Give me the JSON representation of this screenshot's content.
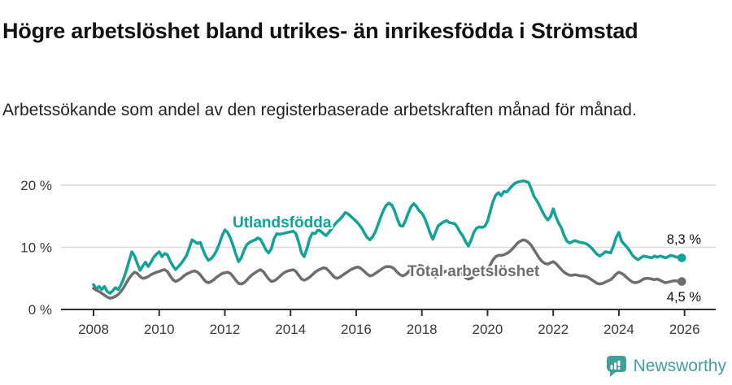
{
  "header": {
    "title": "Högre arbetslöshet bland utrikes- än inrikesfödda i Strömstad",
    "subtitle": "Arbetssökande som andel av den registerbaserade arbetskraften månad för månad."
  },
  "chart_data": {
    "type": "line",
    "unit": "percent",
    "frequency": "monthly",
    "x_start": "2008-01",
    "x_end": "2025-12",
    "grid": "horizontal",
    "legend_position": "inline-labels",
    "y_axis": {
      "range": [
        0,
        22
      ],
      "ticks": [
        {
          "value": 0,
          "label": "0 %"
        },
        {
          "value": 10,
          "label": "10 %"
        },
        {
          "value": 20,
          "label": "20 %"
        }
      ]
    },
    "x_axis": {
      "ticks": [
        {
          "year": 2008,
          "label": "2008"
        },
        {
          "year": 2010,
          "label": "2010"
        },
        {
          "year": 2012,
          "label": "2012"
        },
        {
          "year": 2014,
          "label": "2014"
        },
        {
          "year": 2016,
          "label": "2016"
        },
        {
          "year": 2018,
          "label": "2018"
        },
        {
          "year": 2020,
          "label": "2020"
        },
        {
          "year": 2022,
          "label": "2022"
        },
        {
          "year": 2024,
          "label": "2024"
        },
        {
          "year": 2026,
          "label": "2026"
        }
      ]
    },
    "series": [
      {
        "name": "Utlandsfödda",
        "color": "#12a296",
        "end_label": "8,3 %",
        "end_value": 8.3,
        "values": [
          4.0,
          3.3,
          3.7,
          3.2,
          3.7,
          2.9,
          2.6,
          3.0,
          3.5,
          3.2,
          3.9,
          5.0,
          6.3,
          7.8,
          9.3,
          8.6,
          7.4,
          6.3,
          7.0,
          7.6,
          6.9,
          7.6,
          8.4,
          8.9,
          9.3,
          8.5,
          9.0,
          8.8,
          7.8,
          7.0,
          6.4,
          6.9,
          7.4,
          8.0,
          8.7,
          9.9,
          11.2,
          10.9,
          10.6,
          10.8,
          9.6,
          8.6,
          7.9,
          8.2,
          8.7,
          9.5,
          10.6,
          11.9,
          12.8,
          12.4,
          11.5,
          10.3,
          8.9,
          7.7,
          8.3,
          9.5,
          10.4,
          10.8,
          11.0,
          11.2,
          11.5,
          11.3,
          10.5,
          9.6,
          9.1,
          9.8,
          11.4,
          12.2,
          12.1,
          12.2,
          12.3,
          12.4,
          12.5,
          12.6,
          12.2,
          10.8,
          9.1,
          8.5,
          9.8,
          11.4,
          12.3,
          12.2,
          12.8,
          12.6,
          12.2,
          11.9,
          12.4,
          13.0,
          13.6,
          14.1,
          14.5,
          15.0,
          15.6,
          15.4,
          15.0,
          14.6,
          14.2,
          13.7,
          13.1,
          12.3,
          11.6,
          11.2,
          11.7,
          12.5,
          13.7,
          14.9,
          16.0,
          16.8,
          17.1,
          16.8,
          15.9,
          14.6,
          13.5,
          13.4,
          14.3,
          15.5,
          16.5,
          17.0,
          16.6,
          15.9,
          15.5,
          14.7,
          13.6,
          12.3,
          11.3,
          12.4,
          13.5,
          13.8,
          14.1,
          14.3,
          14.0,
          13.9,
          13.8,
          13.2,
          12.4,
          11.8,
          10.9,
          10.2,
          11.2,
          12.4,
          13.1,
          13.3,
          13.2,
          13.4,
          14.2,
          15.8,
          17.4,
          18.4,
          18.8,
          18.3,
          19.0,
          18.9,
          19.4,
          19.9,
          20.3,
          20.5,
          20.6,
          20.7,
          20.6,
          20.4,
          19.4,
          18.2,
          17.5,
          16.7,
          15.8,
          15.0,
          14.4,
          14.9,
          16.2,
          14.9,
          13.9,
          13.1,
          11.9,
          11.0,
          10.7,
          10.9,
          11.1,
          10.9,
          10.8,
          10.7,
          10.6,
          10.3,
          9.9,
          9.4,
          8.9,
          8.6,
          8.9,
          9.3,
          9.2,
          9.1,
          10.2,
          11.6,
          12.4,
          11.0,
          10.5,
          10.0,
          9.4,
          8.7,
          8.3,
          8.0,
          8.3,
          8.6,
          8.5,
          8.4,
          8.3,
          8.6,
          8.4,
          8.6,
          8.5,
          8.3,
          8.5,
          8.7,
          8.6,
          8.4,
          8.5,
          8.3
        ]
      },
      {
        "name": "Total arbetslöshet",
        "color": "#6e6e6e",
        "end_label": "4,5 %",
        "end_value": 4.5,
        "values": [
          3.4,
          3.1,
          2.9,
          2.6,
          2.3,
          2.0,
          1.8,
          1.9,
          2.1,
          2.4,
          2.9,
          3.5,
          4.3,
          5.0,
          5.6,
          6.0,
          5.8,
          5.3,
          5.0,
          5.1,
          5.3,
          5.6,
          5.8,
          6.0,
          6.1,
          6.3,
          6.4,
          6.1,
          5.4,
          4.8,
          4.5,
          4.7,
          5.0,
          5.4,
          5.7,
          5.9,
          6.1,
          6.2,
          6.0,
          5.6,
          5.0,
          4.5,
          4.3,
          4.5,
          4.8,
          5.2,
          5.5,
          5.8,
          5.9,
          6.0,
          5.8,
          5.3,
          4.7,
          4.2,
          4.1,
          4.3,
          4.7,
          5.2,
          5.6,
          5.9,
          6.2,
          6.4,
          6.1,
          5.5,
          4.9,
          4.5,
          4.6,
          4.9,
          5.3,
          5.7,
          6.0,
          6.2,
          6.3,
          6.4,
          6.1,
          5.5,
          4.9,
          4.7,
          4.9,
          5.2,
          5.6,
          6.0,
          6.3,
          6.5,
          6.7,
          6.6,
          6.2,
          5.7,
          5.2,
          5.0,
          5.2,
          5.5,
          5.8,
          6.1,
          6.4,
          6.6,
          6.8,
          6.8,
          6.5,
          6.1,
          5.7,
          5.4,
          5.5,
          5.8,
          6.1,
          6.4,
          6.7,
          6.9,
          6.9,
          6.8,
          6.5,
          6.0,
          5.6,
          5.4,
          5.6,
          6.0,
          6.5,
          6.9,
          7.1,
          7.1,
          7.0,
          6.7,
          6.2,
          5.7,
          5.4,
          5.2,
          5.4,
          5.7,
          6.0,
          6.2,
          6.3,
          6.4,
          6.4,
          6.2,
          5.9,
          5.5,
          5.1,
          4.9,
          5.0,
          5.3,
          5.5,
          5.7,
          5.9,
          6.1,
          6.5,
          7.2,
          8.0,
          8.5,
          8.7,
          8.7,
          8.8,
          9.0,
          9.3,
          9.7,
          10.2,
          10.7,
          11.0,
          11.2,
          11.1,
          10.8,
          10.3,
          9.6,
          8.9,
          8.2,
          7.7,
          7.4,
          7.3,
          7.5,
          7.7,
          7.4,
          6.9,
          6.4,
          6.0,
          5.7,
          5.5,
          5.5,
          5.6,
          5.5,
          5.4,
          5.4,
          5.3,
          5.1,
          4.8,
          4.5,
          4.2,
          4.1,
          4.2,
          4.4,
          4.6,
          4.8,
          5.2,
          5.7,
          6.0,
          5.8,
          5.5,
          5.1,
          4.7,
          4.4,
          4.3,
          4.4,
          4.6,
          4.9,
          5.0,
          5.0,
          4.9,
          4.8,
          4.9,
          4.7,
          4.5,
          4.3,
          4.4,
          4.5,
          4.6,
          4.6,
          4.5,
          4.5
        ]
      }
    ]
  },
  "footer": {
    "brand": "Newsworthy"
  },
  "colors": {
    "accent": "#12a296",
    "gray_line": "#6e6e6e",
    "grid": "#dcdcdc",
    "axis": "#2f2f2f",
    "axis_text": "#3a3a3a",
    "text": "#111111",
    "brand": "#3fa09a"
  }
}
